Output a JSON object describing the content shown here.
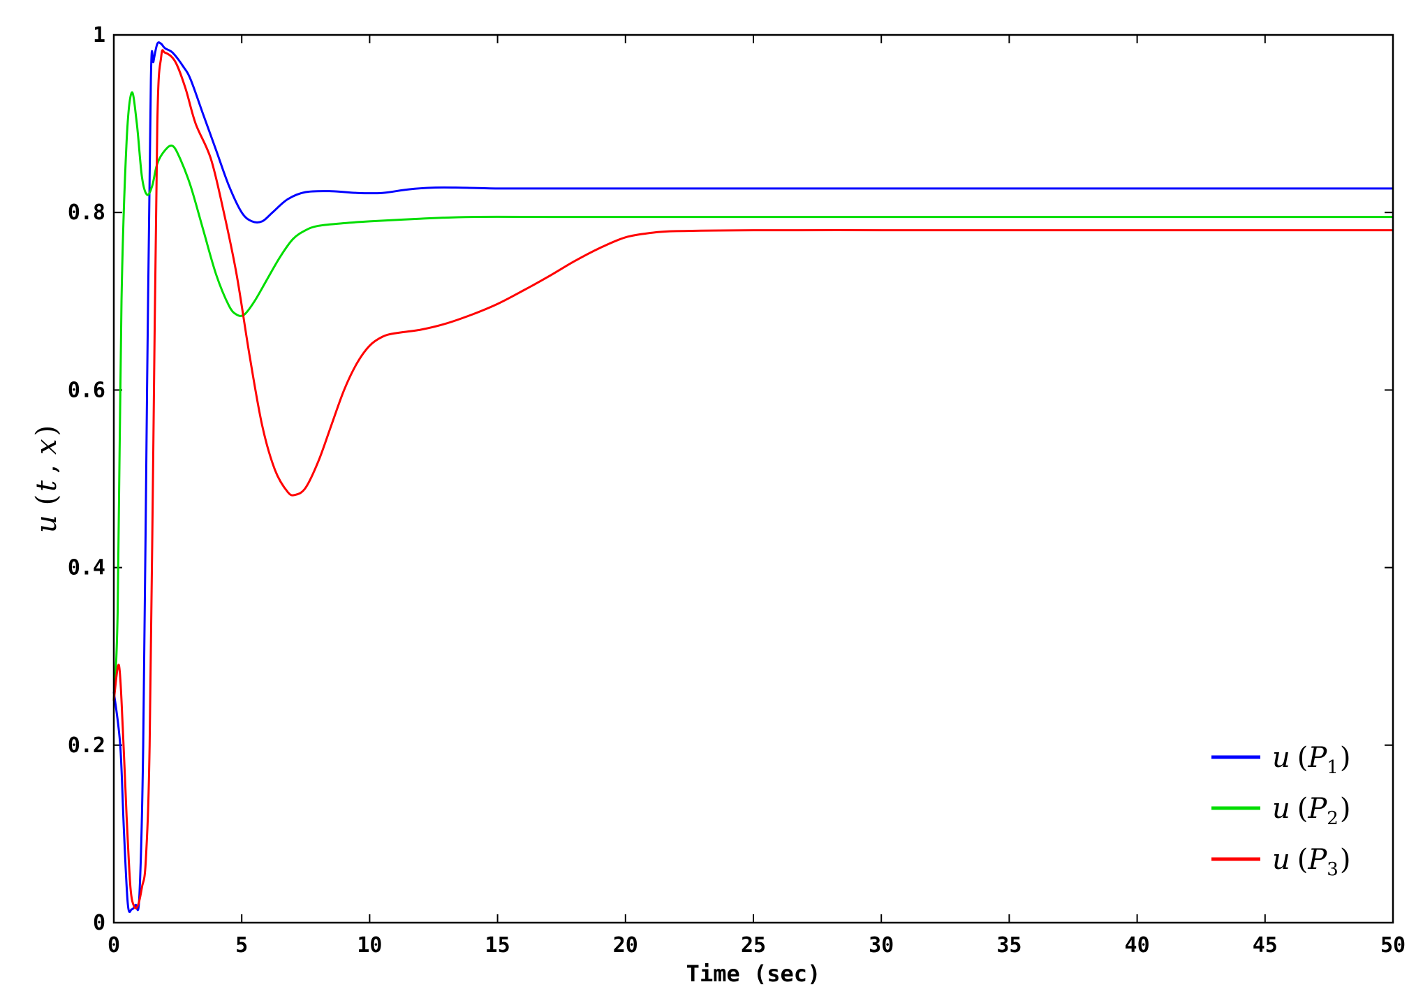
{
  "chart_data": {
    "type": "line",
    "title": "",
    "xlabel": "Time (sec)",
    "ylabel_parts": {
      "func": "u",
      "open": "(",
      "var1": "t",
      "sep": ",",
      "var2": "x",
      "close": ")"
    },
    "xlim": [
      0,
      50
    ],
    "ylim": [
      0,
      1
    ],
    "xticks": [
      0,
      5,
      10,
      15,
      20,
      25,
      30,
      35,
      40,
      45,
      50
    ],
    "yticks": [
      0,
      0.2,
      0.4,
      0.6,
      0.8,
      1
    ],
    "xtick_labels": [
      "0",
      "5",
      "10",
      "15",
      "20",
      "25",
      "30",
      "35",
      "40",
      "45",
      "50"
    ],
    "ytick_labels": [
      "0",
      "0.2",
      "0.4",
      "0.6",
      "0.8",
      "1"
    ],
    "grid": false,
    "legend_position": "bottom-right",
    "series": [
      {
        "name": "u (P1)",
        "legend": {
          "func": "u",
          "open": "(",
          "var": "P",
          "sub": "1",
          "close": ")"
        },
        "color": "#0000ff",
        "x": [
          0,
          0.25,
          0.4,
          0.55,
          0.7,
          0.85,
          1.0,
          1.15,
          1.3,
          1.45,
          1.55,
          1.7,
          1.85,
          2.0,
          2.3,
          2.7,
          3.0,
          3.5,
          4.0,
          4.5,
          5.0,
          5.4,
          5.8,
          6.2,
          6.8,
          7.5,
          8.5,
          9.5,
          10.5,
          11.5,
          12.5,
          13.5,
          15,
          17,
          20,
          25,
          30,
          35,
          40,
          45,
          50
        ],
        "y": [
          0.26,
          0.2,
          0.1,
          0.02,
          0.015,
          0.02,
          0.03,
          0.2,
          0.6,
          0.95,
          0.97,
          0.99,
          0.99,
          0.985,
          0.98,
          0.965,
          0.95,
          0.91,
          0.87,
          0.83,
          0.8,
          0.79,
          0.79,
          0.8,
          0.815,
          0.823,
          0.824,
          0.822,
          0.822,
          0.826,
          0.828,
          0.828,
          0.827,
          0.827,
          0.827,
          0.827,
          0.827,
          0.827,
          0.827,
          0.827,
          0.827
        ]
      },
      {
        "name": "u (P2)",
        "legend": {
          "func": "u",
          "open": "(",
          "var": "P",
          "sub": "2",
          "close": ")"
        },
        "color": "#00dd00",
        "x": [
          0,
          0.15,
          0.3,
          0.5,
          0.7,
          0.9,
          1.1,
          1.3,
          1.5,
          1.7,
          2.0,
          2.3,
          2.6,
          3.0,
          3.5,
          4.0,
          4.5,
          4.8,
          5.1,
          5.5,
          6.0,
          6.5,
          7.0,
          7.5,
          8.0,
          9.0,
          10.0,
          12.0,
          14.0,
          17.0,
          20,
          25,
          30,
          35,
          40,
          45,
          50
        ],
        "y": [
          0.25,
          0.35,
          0.7,
          0.88,
          0.935,
          0.9,
          0.84,
          0.82,
          0.83,
          0.855,
          0.87,
          0.875,
          0.86,
          0.83,
          0.78,
          0.73,
          0.695,
          0.685,
          0.685,
          0.7,
          0.725,
          0.75,
          0.77,
          0.78,
          0.785,
          0.788,
          0.79,
          0.793,
          0.795,
          0.795,
          0.795,
          0.795,
          0.795,
          0.795,
          0.795,
          0.795,
          0.795
        ]
      },
      {
        "name": "u (P3)",
        "legend": {
          "func": "u",
          "open": "(",
          "var": "P",
          "sub": "3",
          "close": ")"
        },
        "color": "#ff0000",
        "x": [
          0,
          0.2,
          0.35,
          0.5,
          0.65,
          0.8,
          0.95,
          1.1,
          1.25,
          1.4,
          1.55,
          1.7,
          1.85,
          2.0,
          2.4,
          2.8,
          3.2,
          3.8,
          4.3,
          4.8,
          5.3,
          5.8,
          6.3,
          6.8,
          7.1,
          7.5,
          8.0,
          8.5,
          9.0,
          9.5,
          10.0,
          10.5,
          11.0,
          12.0,
          13.0,
          14.0,
          15.0,
          16.0,
          17.0,
          18.0,
          19.0,
          20.0,
          21.0,
          22.0,
          25,
          30,
          35,
          40,
          45,
          50
        ],
        "y": [
          0.25,
          0.29,
          0.22,
          0.12,
          0.04,
          0.018,
          0.02,
          0.04,
          0.07,
          0.2,
          0.55,
          0.9,
          0.975,
          0.98,
          0.97,
          0.94,
          0.9,
          0.86,
          0.8,
          0.73,
          0.64,
          0.56,
          0.51,
          0.485,
          0.482,
          0.49,
          0.52,
          0.56,
          0.6,
          0.63,
          0.65,
          0.66,
          0.664,
          0.668,
          0.675,
          0.685,
          0.697,
          0.712,
          0.728,
          0.745,
          0.76,
          0.772,
          0.777,
          0.779,
          0.78,
          0.78,
          0.78,
          0.78,
          0.78,
          0.78
        ]
      }
    ]
  }
}
